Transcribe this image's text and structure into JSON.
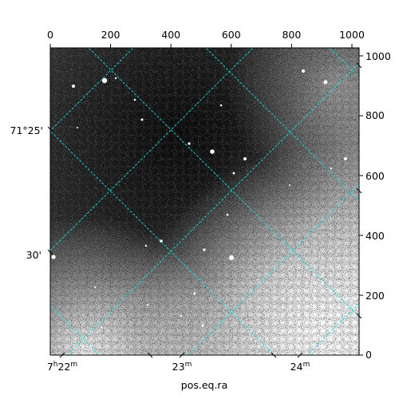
{
  "colors": {
    "grid": "#00e5e5",
    "frame": "#000000",
    "sky_dark": "#1e1e1e",
    "sky_light": "#f6f6f6"
  },
  "axes": {
    "xlabel": "pos.eq.ra",
    "ylabel": "",
    "pixel_top_ticks": [
      "0",
      "200",
      "400",
      "600",
      "800",
      "1000"
    ],
    "pixel_right_ticks": [
      "1000",
      "800",
      "600",
      "400",
      "200",
      "0"
    ],
    "ra_ticks": [
      {
        "prefix": "7",
        "h": "h",
        "value": "22",
        "unit": "m"
      },
      {
        "prefix": "",
        "h": "",
        "value": "23",
        "unit": "m"
      },
      {
        "prefix": "",
        "h": "",
        "value": "24",
        "unit": "m"
      }
    ],
    "dec_ticks": [
      "71°25'",
      "30'"
    ]
  }
}
